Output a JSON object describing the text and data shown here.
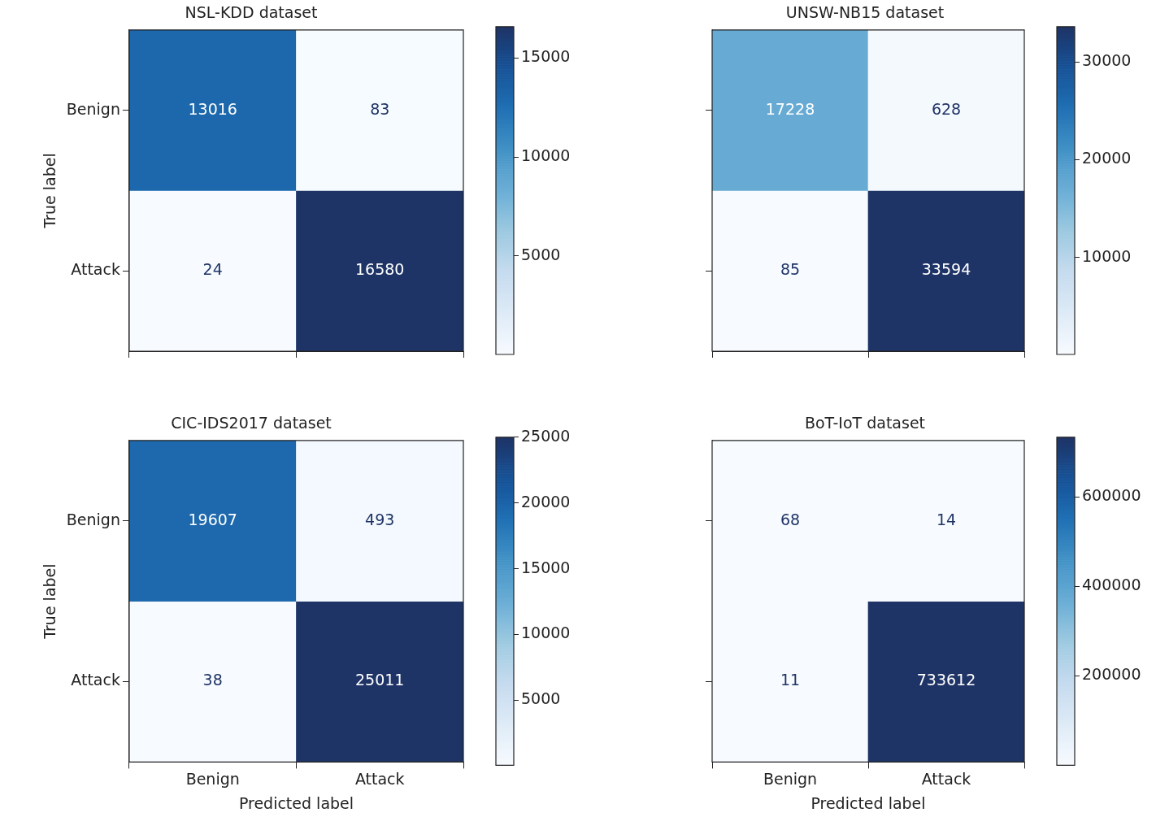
{
  "chart_data": [
    {
      "type": "heatmap",
      "title": "NSL-KDD dataset",
      "ylabel": "True label",
      "categories": [
        null,
        null
      ],
      "y_categories": [
        "Benign",
        "Attack"
      ],
      "cells": [
        [
          13016,
          83
        ],
        [
          24,
          16580
        ]
      ],
      "clim": [
        24,
        16580
      ],
      "cticks": [
        5000,
        10000,
        15000
      ],
      "data_labels": true,
      "tick_labels": "y"
    },
    {
      "type": "heatmap",
      "title": "UNSW-NB15 dataset",
      "categories": [
        null,
        null
      ],
      "y_categories": [
        null,
        null
      ],
      "cells": [
        [
          17228,
          628
        ],
        [
          85,
          33594
        ]
      ],
      "clim": [
        85,
        33594
      ],
      "cticks": [
        10000,
        20000,
        30000
      ],
      "data_labels": true,
      "tick_labels": false
    },
    {
      "type": "heatmap",
      "title": "CIC-IDS2017 dataset",
      "xlabel": "Predicted label",
      "ylabel": "True label",
      "categories": [
        "Benign",
        "Attack"
      ],
      "y_categories": [
        "Benign",
        "Attack"
      ],
      "cells": [
        [
          19607,
          493
        ],
        [
          38,
          25011
        ]
      ],
      "clim": [
        38,
        25011
      ],
      "cticks": [
        5000,
        10000,
        15000,
        20000,
        25000
      ],
      "data_labels": true
    },
    {
      "type": "heatmap",
      "title": "BoT-IoT dataset",
      "xlabel": "Predicted label",
      "categories": [
        "Benign",
        "Attack"
      ],
      "y_categories": [
        null,
        null
      ],
      "cells": [
        [
          68,
          14
        ],
        [
          11,
          733612
        ]
      ],
      "clim": [
        11,
        733612
      ],
      "cticks": [
        200000,
        400000,
        600000
      ],
      "data_labels": true,
      "tick_labels": "x"
    }
  ]
}
